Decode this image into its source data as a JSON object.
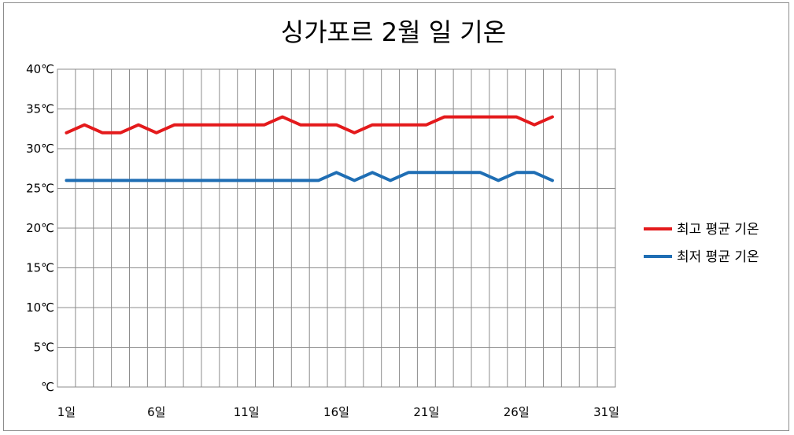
{
  "chart_data": {
    "type": "line",
    "title": "싱가포르 2월 일 기온",
    "xlabel": "",
    "ylabel": "",
    "x": [
      1,
      2,
      3,
      4,
      5,
      6,
      7,
      8,
      9,
      10,
      11,
      12,
      13,
      14,
      15,
      16,
      17,
      18,
      19,
      20,
      21,
      22,
      23,
      24,
      25,
      26,
      27,
      28
    ],
    "xlim": [
      1,
      31
    ],
    "x_ticks": [
      1,
      6,
      11,
      16,
      21,
      26,
      31
    ],
    "x_tick_labels": [
      "1일",
      "6일",
      "11일",
      "16일",
      "21일",
      "26일",
      "31일"
    ],
    "ylim": [
      0,
      40
    ],
    "y_ticks": [
      0,
      5,
      10,
      15,
      20,
      25,
      30,
      35,
      40
    ],
    "y_tick_labels": [
      "℃",
      "5℃",
      "10℃",
      "15℃",
      "20℃",
      "25℃",
      "30℃",
      "35℃",
      "40℃"
    ],
    "grid": true,
    "legend_position": "right",
    "series": [
      {
        "name": "최고 평균 기온",
        "color": "#e41a1c",
        "values": [
          32,
          33,
          32,
          32,
          33,
          32,
          33,
          33,
          33,
          33,
          33,
          33,
          34,
          33,
          33,
          33,
          32,
          33,
          33,
          33,
          33,
          34,
          34,
          34,
          34,
          34,
          33,
          34
        ]
      },
      {
        "name": "최저 평균 기온",
        "color": "#1f6eb4",
        "values": [
          26,
          26,
          26,
          26,
          26,
          26,
          26,
          26,
          26,
          26,
          26,
          26,
          26,
          26,
          26,
          27,
          26,
          27,
          26,
          27,
          27,
          27,
          27,
          27,
          26,
          27,
          27,
          26
        ]
      }
    ]
  }
}
